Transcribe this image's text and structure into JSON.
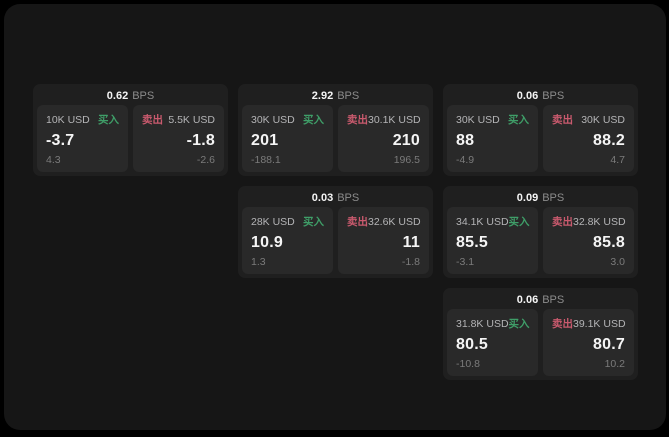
{
  "labels": {
    "bps": "BPS",
    "buy": "买入",
    "sell": "卖出"
  },
  "colors": {
    "background": "#000000",
    "panel": "#161616",
    "card": "#1f1f1f",
    "subcard": "#292929",
    "text_primary": "#f5f5f5",
    "text_label": "#b4b4b6",
    "text_unit": "#8c8c8c",
    "text_dim": "#7b7b7b",
    "buy_green": "#3f9e68",
    "sell_red": "#ca5a6e"
  },
  "cards": [
    {
      "slot": "r0c0",
      "bps": "0.62",
      "buy": {
        "amount": "10K USD",
        "value": "-3.7",
        "delta": "4.3"
      },
      "sell": {
        "amount": "5.5K USD",
        "value": "-1.8",
        "delta": "-2.6"
      }
    },
    {
      "slot": "r0c1",
      "bps": "2.92",
      "buy": {
        "amount": "30K USD",
        "value": "201",
        "delta": "-188.1"
      },
      "sell": {
        "amount": "30.1K USD",
        "value": "210",
        "delta": "196.5"
      }
    },
    {
      "slot": "r0c2",
      "bps": "0.06",
      "buy": {
        "amount": "30K USD",
        "value": "88",
        "delta": "-4.9"
      },
      "sell": {
        "amount": "30K USD",
        "value": "88.2",
        "delta": "4.7"
      }
    },
    {
      "slot": "r1c1",
      "bps": "0.03",
      "buy": {
        "amount": "28K USD",
        "value": "10.9",
        "delta": "1.3"
      },
      "sell": {
        "amount": "32.6K USD",
        "value": "11",
        "delta": "-1.8"
      }
    },
    {
      "slot": "r1c2",
      "bps": "0.09",
      "buy": {
        "amount": "34.1K USD",
        "value": "85.5",
        "delta": "-3.1"
      },
      "sell": {
        "amount": "32.8K USD",
        "value": "85.8",
        "delta": "3.0"
      }
    },
    {
      "slot": "r2c2",
      "bps": "0.06",
      "buy": {
        "amount": "31.8K USD",
        "value": "80.5",
        "delta": "-10.8"
      },
      "sell": {
        "amount": "39.1K USD",
        "value": "80.7",
        "delta": "10.2"
      }
    }
  ]
}
